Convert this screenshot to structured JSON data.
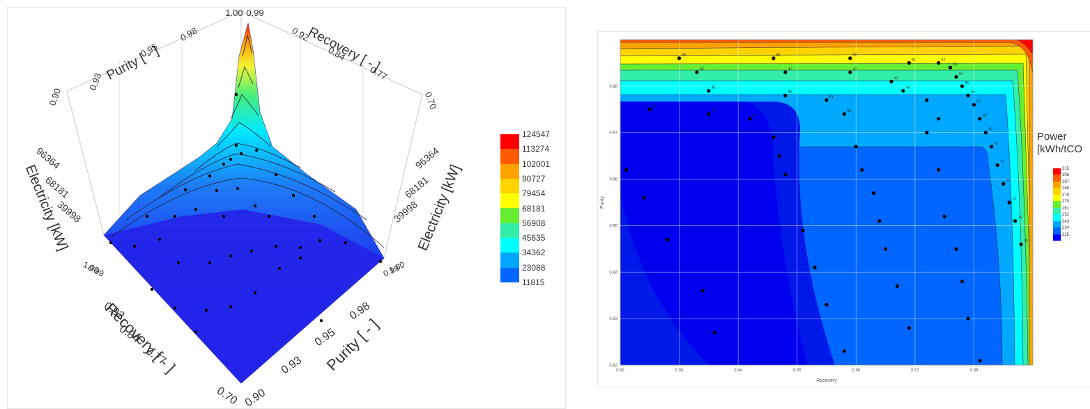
{
  "chart_data": [
    {
      "type": "surface3d",
      "x_axis_label": "Recovery [ - ]",
      "y_axis_label": "Purity [ - ]",
      "z_axis_label": "Electricity [kW]",
      "recovery_ticks": [
        "0.70",
        "0.77",
        "0.84",
        "0.92",
        "0.99"
      ],
      "purity_ticks": [
        "0.90",
        "0.93",
        "0.95",
        "0.98",
        "1.00"
      ],
      "z_ticks": [
        "39998",
        "68181",
        "96364"
      ],
      "back_wall": {
        "purity_ticks": [
          "0.90",
          "0.93",
          "0.95",
          "0.98"
        ],
        "recovery_ticks": [
          "0.92",
          "0.84",
          "0.77",
          "0.70"
        ],
        "corner_labels": [
          "1.00",
          "0.99"
        ]
      },
      "front_overlap_labels": [
        "1.00",
        "0.99"
      ],
      "legend": [
        "124547",
        "113274",
        "102001",
        "90727",
        "79454",
        "68181",
        "56908",
        "45635",
        "34362",
        "23088",
        "11815"
      ],
      "legend_colors": [
        "#ff0000",
        "#ff5a00",
        "#ffa200",
        "#ffd200",
        "#fffe00",
        "#66ee33",
        "#33eeaa",
        "#00ffff",
        "#00a8ff",
        "#0066ff",
        "#0000ff"
      ],
      "z_range": [
        11815,
        124547
      ]
    },
    {
      "type": "contour",
      "xlabel": "Recovery",
      "ylabel": "Purity",
      "xlim": [
        0.92,
        0.99
      ],
      "ylim": [
        0.92,
        0.99
      ],
      "x_ticks": [
        "0.92",
        "0.93",
        "0.94",
        "0.95",
        "0.96",
        "0.97",
        "0.98"
      ],
      "y_ticks": [
        "0.92",
        "0.93",
        "0.94",
        "0.95",
        "0.96",
        "0.97",
        "0.98"
      ],
      "legend_title": [
        "Power",
        "[kWh/tCO"
      ],
      "legend": [
        "315",
        "306",
        "297",
        "288",
        "279",
        "270",
        "261",
        "252",
        "243",
        "234",
        "225"
      ],
      "legend_colors": [
        "#ff0000",
        "#ff5a00",
        "#ffa200",
        "#ffd200",
        "#ffff00",
        "#66ee33",
        "#33eeaa",
        "#00ffff",
        "#00a8ff",
        "#0066ff",
        "#0000ff"
      ],
      "point_labels": [
        "58",
        "59",
        "60",
        "61",
        "62",
        "63",
        "64",
        "65",
        "66",
        "67",
        "68",
        "69",
        "70",
        "71",
        "72",
        "73",
        "74",
        "75",
        "40",
        "41",
        "42",
        "43",
        "44",
        "45",
        "50",
        "51",
        "52",
        "53",
        "54",
        "55"
      ]
    }
  ]
}
